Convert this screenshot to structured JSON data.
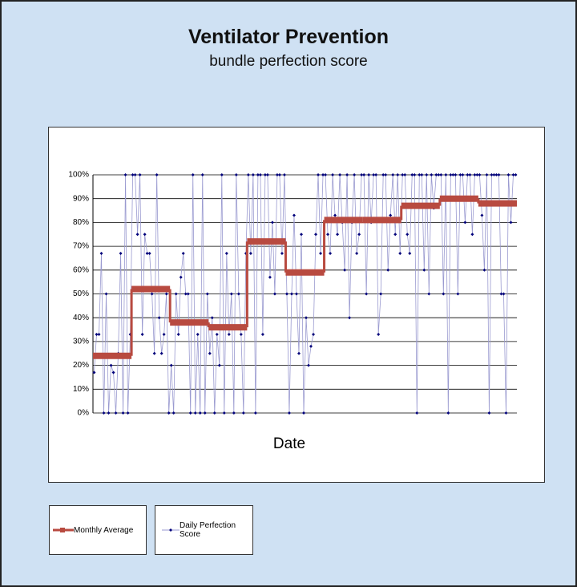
{
  "title": "Ventilator Prevention",
  "subtitle": "bundle perfection score",
  "chart_data": {
    "type": "line",
    "x_label": "Date",
    "ylim": [
      0,
      100
    ],
    "yticks": [
      {
        "value": 0,
        "label": "0%"
      },
      {
        "value": 10,
        "label": "10%"
      },
      {
        "value": 20,
        "label": "20%"
      },
      {
        "value": 30,
        "label": "30%"
      },
      {
        "value": 40,
        "label": "40%"
      },
      {
        "value": 50,
        "label": "50%"
      },
      {
        "value": 60,
        "label": "60%"
      },
      {
        "value": 70,
        "label": "70%"
      },
      {
        "value": 80,
        "label": "80%"
      },
      {
        "value": 90,
        "label": "90%"
      },
      {
        "value": 100,
        "label": "100%"
      }
    ],
    "grid": true,
    "series": [
      {
        "name": "Monthly Average",
        "color": "#b84a40",
        "style": "step",
        "values": [
          24,
          52,
          38,
          36,
          72,
          59,
          81,
          81,
          87,
          90,
          88
        ]
      },
      {
        "name": "Daily Perfection Score",
        "color": "#00007a",
        "line_color": "#9a9ad0",
        "style": "markers",
        "values": [
          17,
          33,
          33,
          67,
          0,
          50,
          0,
          20,
          17,
          0,
          25,
          67,
          0,
          100,
          0,
          33,
          100,
          100,
          75,
          100,
          33,
          75,
          67,
          67,
          50,
          25,
          100,
          40,
          25,
          33,
          50,
          0,
          20,
          0,
          50,
          33,
          57,
          67,
          50,
          50,
          0,
          100,
          0,
          33,
          0,
          100,
          0,
          50,
          25,
          40,
          0,
          33,
          20,
          100,
          0,
          67,
          33,
          50,
          0,
          100,
          50,
          33,
          0,
          67,
          100,
          67,
          100,
          0,
          100,
          100,
          33,
          100,
          100,
          57,
          80,
          50,
          100,
          100,
          67,
          100,
          50,
          0,
          50,
          83,
          50,
          25,
          75,
          0,
          40,
          20,
          28,
          33,
          75,
          100,
          67,
          100,
          100,
          75,
          67,
          100,
          83,
          75,
          100,
          80,
          60,
          100,
          40,
          80,
          100,
          67,
          75,
          100,
          100,
          50,
          100,
          80,
          100,
          100,
          33,
          50,
          100,
          100,
          60,
          83,
          100,
          75,
          100,
          67,
          100,
          100,
          75,
          67,
          100,
          100,
          0,
          100,
          100,
          60,
          100,
          50,
          100,
          86,
          100,
          100,
          100,
          50,
          100,
          0,
          100,
          100,
          100,
          50,
          100,
          100,
          80,
          100,
          100,
          75,
          100,
          100,
          100,
          83,
          60,
          100,
          0,
          100,
          100,
          100,
          100,
          50,
          50,
          0,
          100,
          80,
          100,
          100
        ]
      }
    ],
    "legend": "bottom-left"
  }
}
